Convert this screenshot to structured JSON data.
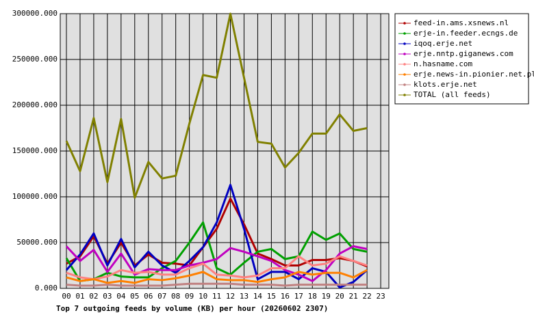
{
  "chart_data": {
    "type": "line",
    "title": "Top 7 outgoing feeds by volume (KB) per hour (20260602 2307)",
    "categories": [
      "00",
      "01",
      "02",
      "03",
      "04",
      "05",
      "06",
      "07",
      "08",
      "09",
      "10",
      "11",
      "12",
      "13",
      "14",
      "15",
      "16",
      "17",
      "18",
      "19",
      "20",
      "21",
      "22",
      "23"
    ],
    "ylim": [
      0,
      300000
    ],
    "yticks": [
      {
        "value": 0,
        "label": "0.000"
      },
      {
        "value": 50000,
        "label": "50000.000"
      },
      {
        "value": 100000,
        "label": "100000.000"
      },
      {
        "value": 150000,
        "label": "150000.000"
      },
      {
        "value": 200000,
        "label": "200000.000"
      },
      {
        "value": 250000,
        "label": "250000.000"
      },
      {
        "value": 300000,
        "label": "300000.000"
      }
    ],
    "grid": true,
    "legend": "right",
    "series": [
      {
        "name": "feed-in.ams.xsnews.nl",
        "color": "#b00000",
        "values": [
          27000,
          35000,
          57000,
          27000,
          50000,
          25000,
          37000,
          28000,
          27000,
          25000,
          45000,
          65000,
          98000,
          70000,
          38000,
          32000,
          25000,
          25000,
          31000,
          31000,
          33000,
          30000,
          24000,
          null
        ]
      },
      {
        "name": "erje-in.feeder.ecngs.de",
        "color": "#00a000",
        "values": [
          33000,
          8000,
          10000,
          17000,
          13000,
          12000,
          12000,
          22000,
          30000,
          50000,
          72000,
          22000,
          15000,
          28000,
          40000,
          43000,
          32000,
          35000,
          62000,
          53000,
          60000,
          43000,
          40000,
          null
        ]
      },
      {
        "name": "iqoq.erje.net",
        "color": "#0000c0",
        "values": [
          20000,
          37000,
          60000,
          25000,
          54000,
          23000,
          40000,
          25000,
          17000,
          30000,
          45000,
          72000,
          113000,
          65000,
          10000,
          18000,
          18000,
          10000,
          22000,
          18000,
          1000,
          7000,
          20000,
          null
        ]
      },
      {
        "name": "erje.nntp.giganews.com",
        "color": "#c000c0",
        "values": [
          46000,
          30000,
          42000,
          18000,
          38000,
          15000,
          21000,
          20000,
          20000,
          25000,
          28000,
          32000,
          44000,
          40000,
          35000,
          30000,
          20000,
          15000,
          8000,
          20000,
          38000,
          46000,
          43000,
          null
        ]
      },
      {
        "name": "n.hasname.com",
        "color": "#ff8080",
        "values": [
          17000,
          12000,
          10000,
          13000,
          20000,
          17000,
          18000,
          15000,
          15000,
          22000,
          27000,
          15000,
          14000,
          12000,
          14000,
          22000,
          22000,
          35000,
          25000,
          27000,
          35000,
          30000,
          25000,
          null
        ]
      },
      {
        "name": "erje.news-in.pionier.net.pl",
        "color": "#ff8000",
        "values": [
          12000,
          8000,
          10000,
          6000,
          8000,
          6000,
          10000,
          9000,
          11000,
          14000,
          18000,
          10000,
          9000,
          9000,
          7000,
          10000,
          12000,
          18000,
          15000,
          17000,
          17000,
          12000,
          20000,
          null
        ]
      },
      {
        "name": "klots.erje.net",
        "color": "#c08080",
        "values": [
          4000,
          3000,
          3000,
          4000,
          3000,
          3000,
          3000,
          3000,
          4000,
          5000,
          5000,
          5000,
          5000,
          4000,
          4000,
          4000,
          3000,
          4000,
          4000,
          4000,
          4000,
          4000,
          4000,
          null
        ]
      },
      {
        "name": "TOTAL (all feeds)",
        "color": "#808000",
        "values": [
          161000,
          128000,
          186000,
          116000,
          185000,
          99000,
          138000,
          120000,
          123000,
          180000,
          233000,
          230000,
          300000,
          230000,
          160000,
          158000,
          132000,
          148000,
          169000,
          169000,
          190000,
          172000,
          175000,
          null
        ]
      }
    ]
  }
}
